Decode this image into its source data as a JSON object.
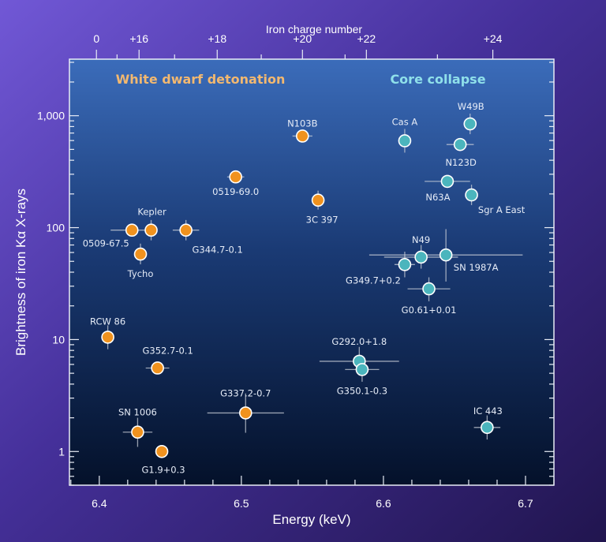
{
  "chart_data": {
    "type": "scatter",
    "xlabel": "Energy (keV)",
    "ylabel": "Brightness of iron Kα X-rays",
    "top_axis_label": "Iron charge number",
    "xlim": [
      6.379,
      6.72
    ],
    "ylim": [
      0.5,
      3200
    ],
    "yscale": "log",
    "grid": false,
    "x_ticks": [
      {
        "value": 6.4,
        "label": "6.4"
      },
      {
        "value": 6.5,
        "label": "6.5"
      },
      {
        "value": 6.6,
        "label": "6.6"
      },
      {
        "value": 6.7,
        "label": "6.7"
      }
    ],
    "y_ticks": [
      {
        "value": 1,
        "label": "1"
      },
      {
        "value": 10,
        "label": "10"
      },
      {
        "value": 100,
        "label": "100"
      },
      {
        "value": 1000,
        "label": "1,000"
      }
    ],
    "top_ticks": [
      {
        "energy": 6.398,
        "label": "0"
      },
      {
        "energy": 6.428,
        "label": "+16"
      },
      {
        "energy": 6.483,
        "label": "+18"
      },
      {
        "energy": 6.543,
        "label": "+20"
      },
      {
        "energy": 6.588,
        "label": "+22"
      },
      {
        "energy": 6.677,
        "label": "+24"
      }
    ],
    "top_minor_ticks": [
      6.4125,
      6.453,
      6.514,
      6.573,
      6.638
    ],
    "groups": [
      {
        "name": "White dwarf detonation",
        "color": "#f0921e",
        "title_color": "#f2b870"
      },
      {
        "name": "Core collapse",
        "color": "#4bb5bd",
        "title_color": "#8fe0ea"
      }
    ],
    "points": [
      {
        "name": "N103B",
        "group": 0,
        "x": 6.543,
        "y": 658,
        "xerr": 0.007,
        "yrange": null
      },
      {
        "name": "0519-69.0",
        "group": 0,
        "x": 6.496,
        "y": 284,
        "xerr": 0.006,
        "yrange": null
      },
      {
        "name": "3C 397",
        "group": 0,
        "x": 6.554,
        "y": 176,
        "xerr": 0,
        "yrange": [
          145,
          214
        ]
      },
      {
        "name": "0509-67.5",
        "group": 0,
        "x": 6.423,
        "y": 95,
        "xerr": 0.015,
        "yrange": null
      },
      {
        "name": "Kepler",
        "group": 0,
        "x": 6.4365,
        "y": 95,
        "xerr": 0,
        "yrange": [
          77,
          117
        ]
      },
      {
        "name": "G344.7-0.1",
        "group": 0,
        "x": 6.461,
        "y": 95,
        "xerr": 0.0093,
        "yrange": [
          77,
          117
        ]
      },
      {
        "name": "Tycho",
        "group": 0,
        "x": 6.429,
        "y": 58,
        "xerr": 0,
        "yrange": [
          47,
          72
        ]
      },
      {
        "name": "RCW 86",
        "group": 0,
        "x": 6.406,
        "y": 10.5,
        "xerr": 0,
        "yrange": [
          8.2,
          13.4
        ]
      },
      {
        "name": "G352.7-0.1",
        "group": 0,
        "x": 6.441,
        "y": 5.57,
        "xerr": 0.0083,
        "yrange": null
      },
      {
        "name": "G337.2-0.7",
        "group": 0,
        "x": 6.503,
        "y": 2.21,
        "xerr": 0.027,
        "yrange": [
          1.47,
          3.3
        ]
      },
      {
        "name": "SN 1006",
        "group": 0,
        "x": 6.427,
        "y": 1.49,
        "xerr": 0.0104,
        "yrange": [
          1.1,
          2.0
        ]
      },
      {
        "name": "G1.9+0.3",
        "group": 0,
        "x": 6.444,
        "y": 1.0,
        "xerr": 0,
        "yrange": null
      },
      {
        "name": "Cas A",
        "group": 1,
        "x": 6.615,
        "y": 597,
        "xerr": 0,
        "yrange": [
          468,
          762
        ]
      },
      {
        "name": "W49B",
        "group": 1,
        "x": 6.661,
        "y": 845,
        "xerr": 0,
        "yrange": [
          684,
          1044
        ]
      },
      {
        "name": "N123D",
        "group": 1,
        "x": 6.654,
        "y": 553,
        "xerr": 0.0096,
        "yrange": null
      },
      {
        "name": "N63A",
        "group": 1,
        "x": 6.645,
        "y": 259,
        "xerr": 0.016,
        "yrange": null
      },
      {
        "name": "Sgr A East",
        "group": 1,
        "x": 6.662,
        "y": 196,
        "xerr": 0,
        "yrange": [
          159,
          242
        ]
      },
      {
        "name": "N49",
        "group": 1,
        "x": 6.6265,
        "y": 54.5,
        "xerr": 0.026,
        "yrange": [
          43,
          70
        ]
      },
      {
        "name": "SN 1987A",
        "group": 1,
        "x": 6.644,
        "y": 57,
        "xerr": 0.054,
        "yrange": [
          33,
          97
        ]
      },
      {
        "name": "G349.7+0.2",
        "group": 1,
        "x": 6.615,
        "y": 46.8,
        "xerr": 0.0072,
        "yrange": [
          36,
          61
        ]
      },
      {
        "name": "G0.61+0.01",
        "group": 1,
        "x": 6.632,
        "y": 28.4,
        "xerr": 0.015,
        "yrange": [
          22,
          36
        ]
      },
      {
        "name": "G292.0+1.8",
        "group": 1,
        "x": 6.583,
        "y": 6.4,
        "xerr": 0.028,
        "yrange": [
          4.8,
          8.6
        ]
      },
      {
        "name": "G350.1-0.3",
        "group": 1,
        "x": 6.585,
        "y": 5.4,
        "xerr": 0.012,
        "yrange": [
          4.2,
          6.9
        ]
      },
      {
        "name": "IC 443",
        "group": 1,
        "x": 6.673,
        "y": 1.64,
        "xerr": 0.0093,
        "yrange": [
          1.28,
          2.1
        ]
      }
    ]
  }
}
